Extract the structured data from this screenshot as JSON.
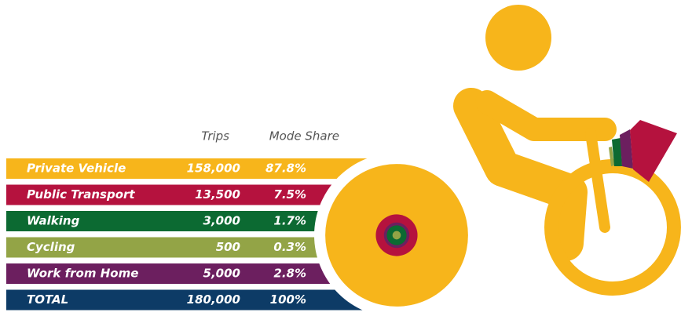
{
  "table": {
    "columns": [
      "Trips",
      "Mode Share"
    ],
    "rows": [
      {
        "mode": "Private Vehicle",
        "trips": "158,000",
        "share": "87.8%",
        "color": "#f7b51b"
      },
      {
        "mode": "Public Transport",
        "trips": "13,500",
        "share": "7.5%",
        "color": "#b5123e"
      },
      {
        "mode": "Walking",
        "trips": "3,000",
        "share": "1.7%",
        "color": "#0c6a32"
      },
      {
        "mode": "Cycling",
        "trips": "500",
        "share": "0.3%",
        "color": "#93a446"
      },
      {
        "mode": "Work from Home",
        "trips": "5,000",
        "share": "2.8%",
        "color": "#6c1f5f"
      },
      {
        "mode": "TOTAL",
        "trips": "180,000",
        "share": "100%",
        "color": "#0d3b66"
      }
    ]
  }
}
